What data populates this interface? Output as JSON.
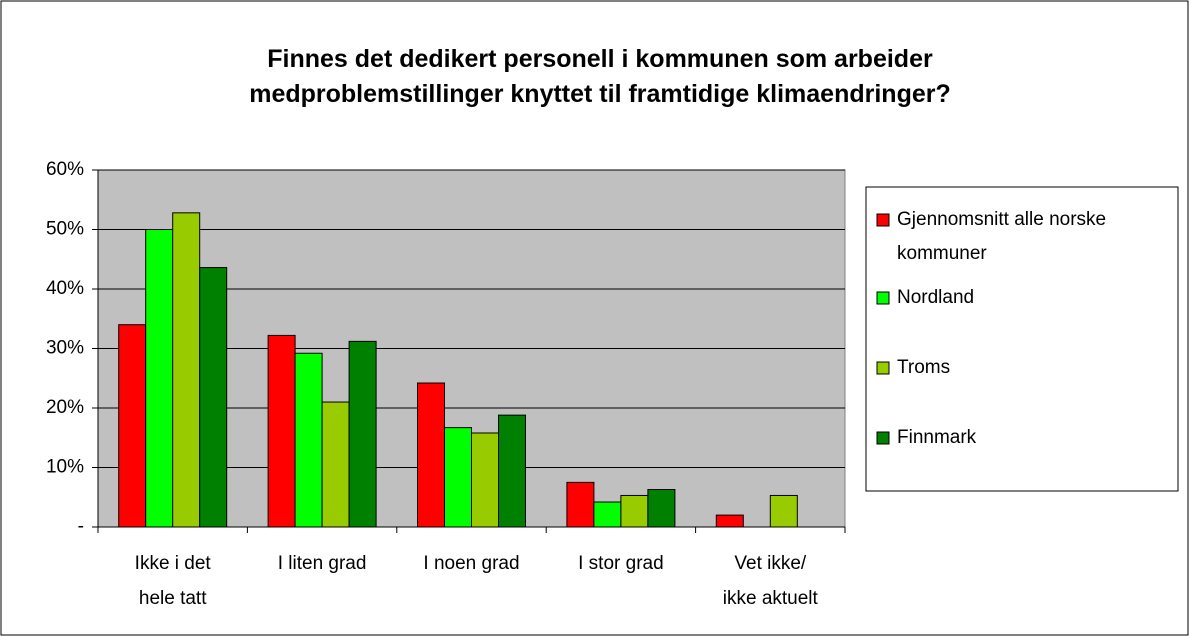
{
  "chart_data": {
    "type": "bar",
    "title": "Finnes det dedikert personell i kommunen som arbeider\nmedproblemstillinger knyttet til framtidige klimaendringer?",
    "categories": [
      "Ikke i det\nhele tatt",
      "I liten grad",
      "I noen grad",
      "I stor grad",
      "Vet ikke/\nikke aktuelt"
    ],
    "series": [
      {
        "name": "Gjennomsnitt alle norske\nkommuner",
        "color": "#ff0000",
        "values": [
          34,
          32.2,
          24.2,
          7.5,
          2
        ]
      },
      {
        "name": "Nordland",
        "color": "#00ff00",
        "values": [
          50,
          29.2,
          16.7,
          4.2,
          0
        ]
      },
      {
        "name": "Troms",
        "color": "#99cc00",
        "values": [
          52.8,
          21,
          15.8,
          5.3,
          5.3
        ]
      },
      {
        "name": "Finnmark",
        "color": "#008000",
        "values": [
          43.6,
          31.2,
          18.8,
          6.3,
          0
        ]
      }
    ],
    "ylim": [
      0,
      60
    ],
    "yticks": [
      {
        "value": 0,
        "label": "-"
      },
      {
        "value": 10,
        "label": "10%"
      },
      {
        "value": 20,
        "label": "20%"
      },
      {
        "value": 30,
        "label": "30%"
      },
      {
        "value": 40,
        "label": "40%"
      },
      {
        "value": 50,
        "label": "50%"
      },
      {
        "value": 60,
        "label": "60%"
      }
    ],
    "grid": true,
    "legend": "right"
  }
}
